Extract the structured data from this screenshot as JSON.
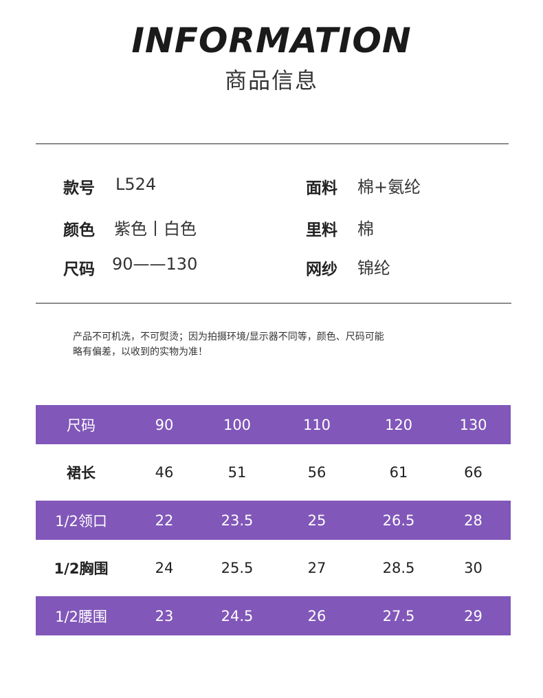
{
  "header": {
    "title": "INFORMATION",
    "subtitle": "商品信息"
  },
  "specs": {
    "style_no_label": "款号",
    "style_no_value": "L524",
    "fabric_label": "面料",
    "fabric_value": "棉+氨纶",
    "color_label": "颜色",
    "color_value": "紫色丨白色",
    "lining_label": "里料",
    "lining_value": "棉",
    "size_label": "尺码",
    "size_value": "90——130",
    "mesh_label": "网纱",
    "mesh_value": "锦纶"
  },
  "note": {
    "line1": "产品不可机洗，不可熨烫；因为拍摄环境/显示器不同等，颜色、尺码可能",
    "line2": "略有偏差，以收到的实物为准！"
  },
  "size_table": {
    "accent_color": "#8157b9",
    "rows": [
      {
        "label": "尺码",
        "cells": [
          "90",
          "100",
          "110",
          "120",
          "130"
        ]
      },
      {
        "label": "裙长",
        "cells": [
          "46",
          "51",
          "56",
          "61",
          "66"
        ]
      },
      {
        "label": "1/2领口",
        "cells": [
          "22",
          "23.5",
          "25",
          "26.5",
          "28"
        ]
      },
      {
        "label": "1/2胸围",
        "cells": [
          "24",
          "25.5",
          "27",
          "28.5",
          "30"
        ]
      },
      {
        "label": "1/2腰围",
        "cells": [
          "23",
          "24.5",
          "26",
          "27.5",
          "29"
        ]
      }
    ]
  }
}
